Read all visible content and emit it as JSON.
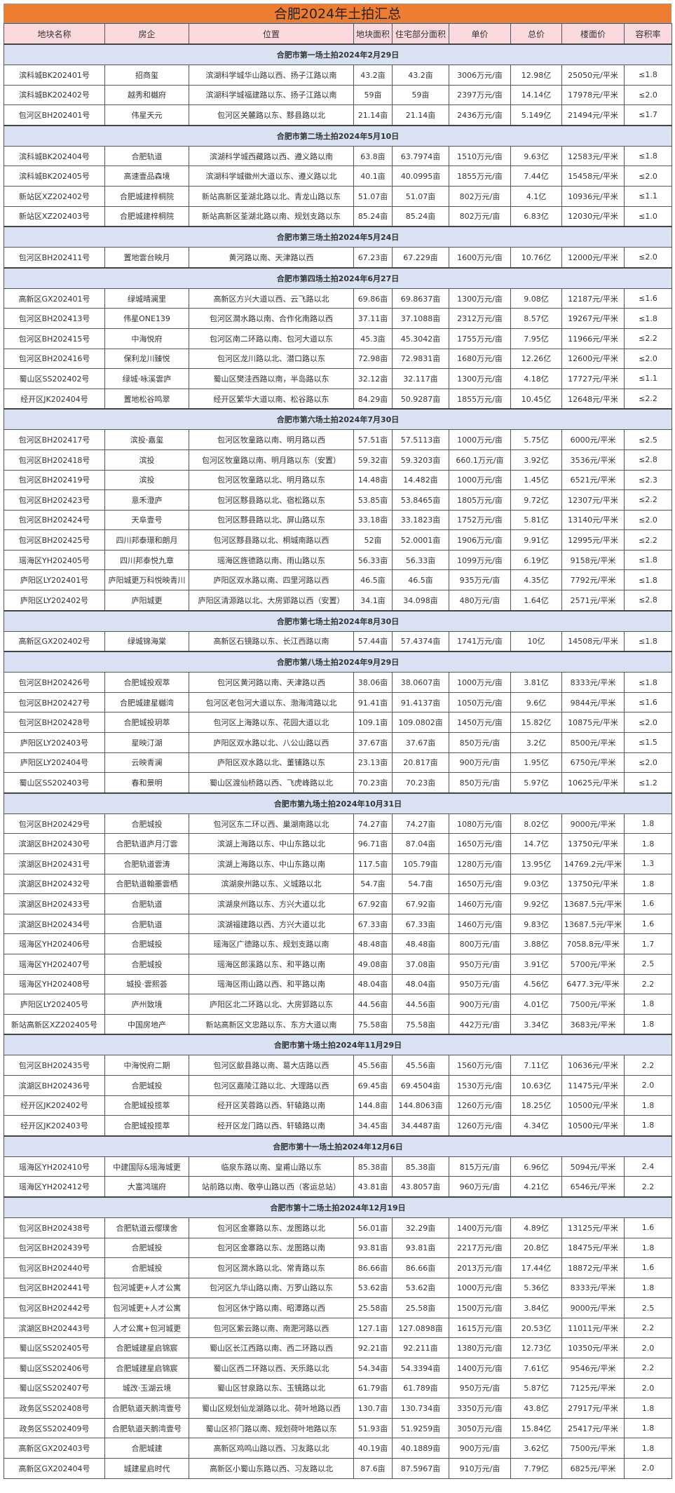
{
  "title": "合肥2024年土拍汇总",
  "watermark": "@合肥班长",
  "colors": {
    "title_bg": "#ED7D31",
    "header_bg": "#FADADD",
    "section_bg": "#D9E1F2"
  },
  "headers": [
    "地块名称",
    "房企",
    "位置",
    "地块面积",
    "住宅部分面积",
    "单价",
    "总价",
    "楼面价",
    "容积率"
  ],
  "sections": [
    {
      "title": "合肥市第一场土拍2024年2月29日",
      "rows": [
        [
          "滨科城BK202401号",
          "招商玺",
          "滨湖科学城华山路以西、扬子江路以南",
          "43.2亩",
          "43.2亩",
          "3006万元/亩",
          "12.98亿",
          "25050元/平米",
          "≤1.8"
        ],
        [
          "滨科城BK202402号",
          "越秀和樾府",
          "滨湖科学城福建路以东、扬子江路以南",
          "59亩",
          "59亩",
          "2397万元/亩",
          "14.14亿",
          "17978元/平米",
          "≤2.0"
        ],
        [
          "包河区BH202401号",
          "伟星天元",
          "包河区关麓路以东、黟县路以北",
          "21.14亩",
          "21.14亩",
          "2436万元/亩",
          "5.149亿",
          "21494元/平米",
          "≤1.7"
        ]
      ]
    },
    {
      "title": "合肥市第二场土拍2024年5月10日",
      "rows": [
        [
          "滨科城BK202404号",
          "合肥轨道",
          "滨湖科学城西藏路以西、遵义路以南",
          "63.8亩",
          "63.7974亩",
          "1510万元/亩",
          "9.63亿",
          "12583元/平米",
          "≤1.8"
        ],
        [
          "滨科城BK202405号",
          "高速壹品森境",
          "滨湖科学城徽州大道以东、遵义路以北",
          "40.1亩",
          "40.0995亩",
          "1855万元/亩",
          "7.44亿",
          "15458元/平米",
          "≤2.0"
        ],
        [
          "新站区XZ202402号",
          "合肥城建梓桐院",
          "新站高新区荃湖北路以北、青龙山路以东",
          "51.07亩",
          "51.07亩",
          "802万元/亩",
          "4.1亿",
          "10936元/平米",
          "≤1.1"
        ],
        [
          "新站区XZ202403号",
          "合肥城建梓桐院",
          "新站高新区荃湖北路以南、规划支路以东",
          "85.24亩",
          "85.24亩",
          "802万元/亩",
          "6.83亿",
          "12030元/平米",
          "≤1.0"
        ]
      ]
    },
    {
      "title": "合肥市第三场土拍2024年5月24日",
      "rows": [
        [
          "包河区BH202411号",
          "置地雲台映月",
          "黄河路以南、天津路以西",
          "67.23亩",
          "67.229亩",
          "1600万元/亩",
          "10.76亿",
          "12000元/平米",
          "≤2.0"
        ]
      ]
    },
    {
      "title": "合肥市第四场土拍2024年6月27日",
      "rows": [
        [
          "高新区GX202401号",
          "绿城晴澜里",
          "高新区方兴大道以西、云飞路以北",
          "69.86亩",
          "69.8637亩",
          "1300万元/亩",
          "9.08亿",
          "12187元/平米",
          "≤1.6"
        ],
        [
          "包河区BH202413号",
          "伟星ONE139",
          "包河区澗水路以南、合作化南路以西",
          "37.11亩",
          "37.1088亩",
          "2312万元/亩",
          "8.57亿",
          "19267元/平米",
          "≤1.8"
        ],
        [
          "包河区BH202415号",
          "中海悦府",
          "包河区南二环路以南、包河大道以东",
          "45.3亩",
          "45.3042亩",
          "1755万元/亩",
          "7.95亿",
          "11966元/平米",
          "≤2.2"
        ],
        [
          "包河区BH202416号",
          "保利龙川臻悦",
          "包河区龙川路以北、潜口路以东",
          "72.98亩",
          "72.9831亩",
          "1680万元/亩",
          "12.26亿",
          "12600元/平米",
          "≤2.0"
        ],
        [
          "蜀山区SS202402号",
          "绿城·咏溪雲庐",
          "蜀山区樊洼西路以南，半岛路以东",
          "32.12亩",
          "32.117亩",
          "1300万元/亩",
          "4.18亿",
          "17727元/平米",
          "≤1.1"
        ],
        [
          "经开区JK202404号",
          "置地松谷鸣翠",
          "经开区繁华大道以南、松谷路以东",
          "84.29亩",
          "50.9287亩",
          "1855万元/亩",
          "10.45亿",
          "12648元/平米",
          "≤2.2"
        ]
      ]
    },
    {
      "title": "合肥市第六场土拍2024年7月30日",
      "rows": [
        [
          "包河区BH202417号",
          "滨投·嘉玺",
          "包河区牧童路以南、明月路以西",
          "57.51亩",
          "57.5113亩",
          "1000万元/亩",
          "5.75亿",
          "6000元/平米",
          "≤2.5"
        ],
        [
          "包河区BH202418号",
          "滨投",
          "包河区牧童路以南、明月路以东（安置）",
          "59.32亩",
          "59.3203亩",
          "660.1万元/亩",
          "3.92亿",
          "3536元/平米",
          "≤2.8"
        ],
        [
          "包河区BH202419号",
          "滨投",
          "包河区牧童路以北、明月路以东",
          "14.48亩",
          "14.482亩",
          "1000万元/亩",
          "1.45亿",
          "6521元/平米",
          "≤2.3"
        ],
        [
          "包河区BH202423号",
          "意禾澄庐",
          "包河区黟县路以北、宿松路以东",
          "53.85亩",
          "53.8465亩",
          "1805万元/亩",
          "9.72亿",
          "12307元/平米",
          "≤2.2"
        ],
        [
          "包河区BH202424号",
          "天阜壹号",
          "包河区黟县路以北、屏山路以东",
          "33.18亩",
          "33.1823亩",
          "1752万元/亩",
          "5.81亿",
          "13140元/平米",
          "≤2.0"
        ],
        [
          "包河区BH202425号",
          "四川邦泰璟和朗月",
          "包河区黟县路以北、桐城南路以西",
          "52亩",
          "52.0001亩",
          "1906万元/亩",
          "9.91亿",
          "12995元/平米",
          "≤2.2"
        ],
        [
          "瑶海区YH202405号",
          "四川邦泰悦九章",
          "瑶海区旌德路以南、雨山路以东",
          "56.33亩",
          "56.33亩",
          "1099万元/亩",
          "6.19亿",
          "9158元/平米",
          "≤1.8"
        ],
        [
          "庐阳区LY202401号",
          "庐阳城更万科悦映青川",
          "庐阳区双水路以南、四里河路以西",
          "46.5亩",
          "46.5亩",
          "935万元/亩",
          "4.35亿",
          "7792元/平米",
          "≤1.8"
        ],
        [
          "庐阳区LY202402号",
          "庐阳城更",
          "庐阳区清源路以北、大房郢路以西（安置）",
          "34.1亩",
          "34.098亩",
          "480万元/亩",
          "1.64亿",
          "2571元/平米",
          "≤2.8"
        ]
      ]
    },
    {
      "title": "合肥市第七场土拍2024年8月30日",
      "rows": [
        [
          "高新区GX202402号",
          "绿城锦海棠",
          "高新区石镜路以东、长江西路以南",
          "57.44亩",
          "57.4374亩",
          "1741万元/亩",
          "10亿",
          "14508元/平米",
          "≤1.8"
        ]
      ]
    },
    {
      "title": "合肥市第八场土拍2024年9月29日",
      "rows": [
        [
          "包河区BH202426号",
          "合肥城投观萃",
          "包河区黄河路以南、天津路以西",
          "38.06亩",
          "38.0607亩",
          "1000万元/亩",
          "3.81亿",
          "8333元/平米",
          "≤1.8"
        ],
        [
          "包河区BH202427号",
          "合肥城建星樾湾",
          "包河区老包河大道以东、渤海湾路以北",
          "91.41亩",
          "91.4137亩",
          "1050万元/亩",
          "9.6亿",
          "9844元/平米",
          "≤1.6"
        ],
        [
          "包河区BH202428号",
          "合肥城投玥萃",
          "包河区上海路以东、花园大道以北",
          "109.1亩",
          "109.0802亩",
          "1450万元/亩",
          "15.82亿",
          "10875元/平米",
          "≤2.0"
        ],
        [
          "庐阳区LY202403号",
          "星映汀湖",
          "庐阳区双水路以北、八公山路以西",
          "37.67亩",
          "37.67亩",
          "850万元/亩",
          "3.2亿",
          "8500元/平米",
          "≤1.5"
        ],
        [
          "庐阳区LY202404号",
          "云映青澜",
          "庐阳区双水路以北、董铺路以东",
          "23.13亩",
          "20.817亩",
          "900万元/亩",
          "1.95亿",
          "6750元/平米",
          "≤2.0"
        ],
        [
          "蜀山区SS202403号",
          "春和景明",
          "蜀山区渡仙桥路以西、飞虎峰路以北",
          "70.23亩",
          "70.23亩",
          "850万元/亩",
          "5.97亿",
          "10625元/平米",
          "≤1.2"
        ]
      ]
    },
    {
      "title": "合肥市第九场土拍2024年10月31日",
      "rows": [
        [
          "包河区BH202429号",
          "合肥城投",
          "包河区东二环以西、巢湖南路以北",
          "74.27亩",
          "74.27亩",
          "1080万元/亩",
          "8.02亿",
          "9000元/平米",
          "1.8"
        ],
        [
          "滨湖区BH202430号",
          "合肥轨道庐月汀雲",
          "滨湖上海路以东、中山东路以北",
          "96.71亩",
          "87.04亩",
          "1650万元/亩",
          "14.7亿",
          "13750元/平米",
          "1.8"
        ],
        [
          "滨湖区BH202431号",
          "合肥轨道雲涛",
          "滨湖上海路以东、中山东路以南",
          "117.5亩",
          "105.79亩",
          "1280万元/亩",
          "13.95亿",
          "14769.2元/平米",
          "1.3"
        ],
        [
          "滨湖区BH202432号",
          "合肥轨道翰墨雲栖",
          "滨湖泉州路以东、义城路以北",
          "54.7亩",
          "54.7亩",
          "1650万元/亩",
          "9.03亿",
          "13750元/平米",
          "1.8"
        ],
        [
          "滨湖区BH202433号",
          "合肥轨道",
          "滨湖泉州路以东、方兴大道以北",
          "67.92亩",
          "67.92亩",
          "1460万元/亩",
          "9.92亿",
          "13687.5元/平米",
          "1.6"
        ],
        [
          "滨湖区BH202434号",
          "合肥轨道",
          "滨湖福建路以西、方兴大道以北",
          "67.33亩",
          "67.33亩",
          "1460万元/亩",
          "9.83亿",
          "13687.5元/平米",
          "1.6"
        ],
        [
          "瑶海区YH202406号",
          "合肥城投",
          "瑶海区广德路以东、规划支路以南",
          "48.48亩",
          "48.48亩",
          "800万元/亩",
          "3.88亿",
          "7058.8元/平米",
          "1.7"
        ],
        [
          "瑶海区YH202407号",
          "合肥城投",
          "瑶海区郎溪路以东、和平路以南",
          "49.08亩",
          "37.08亩",
          "950万元/亩",
          "3.91亿",
          "5700元/平米",
          "2.5"
        ],
        [
          "瑶海区YH202408号",
          "城投·雲熙荟",
          "瑶海区雨山路以西、和平路以南",
          "48.04亩",
          "48.04亩",
          "950万元/亩",
          "4.56亿",
          "6477.3元/平米",
          "2.2"
        ],
        [
          "庐阳区LY202405号",
          "庐州致境",
          "庐阳区北二环路以北、大房郢路以东",
          "44.56亩",
          "44.56亩",
          "900万元/亩",
          "4.01亿",
          "7500元/平米",
          "1.8"
        ],
        [
          "新站高新区XZ202405号",
          "中国房地产",
          "新站高新区文忠路以东、东方大道以南",
          "75.58亩",
          "75.58亩",
          "442万元/亩",
          "3.34亿",
          "3683元/平米",
          "1.8"
        ]
      ]
    },
    {
      "title": "合肥市第十场土拍2024年11月29日",
      "rows": [
        [
          "包河区BH202435号",
          "中海悦府二期",
          "包河区歙县路以南、葛大店路以西",
          "45.56亩",
          "45.56亩",
          "1560万元/亩",
          "7.11亿",
          "10636元/平米",
          "2.2"
        ],
        [
          "滨湖区BH202436号",
          "合肥城投",
          "包河区嘉陵江路以北、大理路以西",
          "69.45亩",
          "69.4504亩",
          "1530万元/亩",
          "10.63亿",
          "11475元/平米",
          "2.0"
        ],
        [
          "经开区JK202402号",
          "合肥城投揽萃",
          "经开区芙蓉路以西、轩辕路以南",
          "144.8亩",
          "144.8063亩",
          "1260万元/亩",
          "18.25亿",
          "10500元/平米",
          "1.8"
        ],
        [
          "经开区JK202403号",
          "合肥城投揽萃",
          "经开区龙门路以西、轩辕路以南",
          "34.45亩",
          "34.4487亩",
          "1260万元/亩",
          "4.34亿",
          "10500元/平米",
          "1.8"
        ]
      ]
    },
    {
      "title": "合肥市第十一场土拍2024年12月6日",
      "rows": [
        [
          "瑶海区YH202410号",
          "中建国际&瑶海城更",
          "临泉东路以南、皇甫山路以东",
          "85.38亩",
          "85.38亩",
          "815万元/亩",
          "6.96亿",
          "5094元/平米",
          "2.4"
        ],
        [
          "瑶海区YH202412号",
          "大富鸿瑞府",
          "站前路以南、敬亭山路以西（客运总站）",
          "43.81亩",
          "43.8057亩",
          "960万元/亩",
          "4.21亿",
          "6546元/平米",
          "2.2"
        ]
      ]
    },
    {
      "title": "合肥市第十二场土拍2024年12月19日",
      "rows": [
        [
          "包河区BH202438号",
          "合肥轨道云缨璞舍",
          "包河区金寨路以东、龙图路以北",
          "56.01亩",
          "32.29亩",
          "1400万元/亩",
          "4.89亿",
          "13125元/平米",
          "1.6"
        ],
        [
          "包河区BH202439号",
          "合肥城投",
          "包河区金寨路以东、龙图路以南",
          "93.81亩",
          "93.81亩",
          "2217万元/亩",
          "20.8亿",
          "18475元/平米",
          "1.8"
        ],
        [
          "包河区BH202440号",
          "合肥城投",
          "包河区澗水路以北、常青路以东",
          "86.66亩",
          "86.66亩",
          "2013万元/亩",
          "17.44亿",
          "18872元/平米",
          "1.6"
        ],
        [
          "包河区BH202441号",
          "包河城更+人才公寓",
          "包河区九华山路以南、万罗山路以东",
          "53.62亩",
          "53.62亩",
          "1000万元/亩",
          "5.36亿",
          "8333元/平米",
          "1.8"
        ],
        [
          "包河区BH202442号",
          "包河城更+人才公寓",
          "包河区休宁路以南、昭潭路以西",
          "25.58亩",
          "25.58亩",
          "1500万元/亩",
          "3.84亿",
          "9000元/平米",
          "2.5"
        ],
        [
          "滨湖区BH202443号",
          "人才公寓+包河城更",
          "包河区紫云路以南、南淝河路以西",
          "127.1亩",
          "127.0898亩",
          "1615万元/亩",
          "20.53亿",
          "11011元/平米",
          "2.2"
        ],
        [
          "蜀山区SS202405号",
          "合肥城建星启锦宸",
          "蜀山区长江西路以南、西二环路以西",
          "92.21亩",
          "92.211亩",
          "1380万元/亩",
          "12.73亿",
          "10350元/平米",
          "2.0"
        ],
        [
          "蜀山区SS202406号",
          "合肥城建星启锦宸",
          "蜀山区西二环路以西、天乐路以北",
          "54.34亩",
          "54.3394亩",
          "1400万元/亩",
          "7.61亿",
          "9546元/平米",
          "2.2"
        ],
        [
          "蜀山区SS202407号",
          "城改·玉湖云境",
          "蜀山区甘泉路以东、玉镜路以北",
          "61.79亩",
          "61.789亩",
          "950万元/亩",
          "5.87亿",
          "7125元/平米",
          "2.0"
        ],
        [
          "政务区SS202408号",
          "合肥轨道天鹅湾壹号",
          "蜀山区规划仙龙湖路以北、荷叶地路以西",
          "130.7亩",
          "130.734亩",
          "3350万元/亩",
          "43.8亿",
          "27917元/平米",
          "1.8"
        ],
        [
          "政务区SS202409号",
          "合肥轨道天鹅湾壹号",
          "蜀山区祁门路以南、规划荷叶地路以东",
          "51.93亩",
          "51.9259亩",
          "3050万元/亩",
          "15.84亿",
          "25417元/平米",
          "1.8"
        ],
        [
          "高新区GX202403号",
          "合肥城建",
          "高新区鸡鸣山路以西、习友路以北",
          "40.19亩",
          "40.1889亩",
          "900万元/亩",
          "3.62亿",
          "7500元/平米",
          "1.8"
        ],
        [
          "高新区GX202404号",
          "城建星启时代",
          "高新区小蜀山东路以西、习友路以北",
          "87.6亩",
          "87.5967亩",
          "910万元/亩",
          "7.79亿",
          "6825元/平米",
          "2.0"
        ]
      ]
    }
  ]
}
